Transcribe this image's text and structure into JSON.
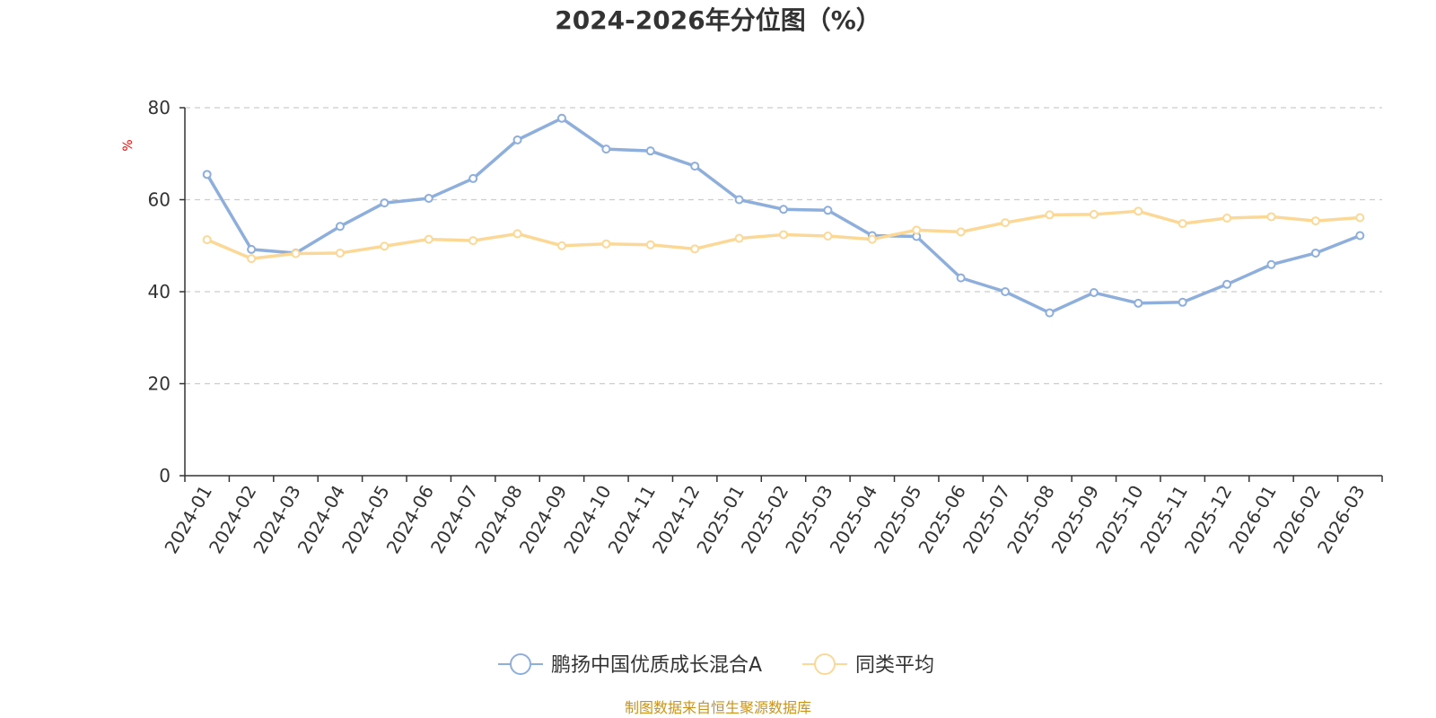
{
  "chart_data": {
    "type": "line",
    "title": "2024-2026年分位图（%）",
    "ylabel": "%",
    "ylim": [
      0,
      80
    ],
    "yticks": [
      0,
      20,
      40,
      60,
      80
    ],
    "grid": true,
    "legend_position": "bottom",
    "categories": [
      "2024-01",
      "2024-02",
      "2024-03",
      "2024-04",
      "2024-05",
      "2024-06",
      "2024-07",
      "2024-08",
      "2024-09",
      "2024-10",
      "2024-11",
      "2024-12",
      "2025-01",
      "2025-02",
      "2025-03",
      "2025-04",
      "2025-05",
      "2025-06",
      "2025-07",
      "2025-08",
      "2025-09",
      "2025-10",
      "2025-11",
      "2025-12",
      "2026-01",
      "2026-02",
      "2026-03"
    ],
    "series": [
      {
        "name": "鹏扬中国优质成长混合A",
        "color": "#8eaedb",
        "values": [
          65.5,
          49.2,
          48.4,
          54.2,
          59.3,
          60.3,
          64.6,
          73.0,
          77.7,
          71.0,
          70.6,
          67.3,
          60.0,
          57.9,
          57.7,
          52.2,
          52.0,
          43.0,
          40.0,
          35.4,
          39.8,
          37.5,
          37.7,
          41.6,
          45.9,
          48.4,
          52.2
        ]
      },
      {
        "name": "同类平均",
        "color": "#fcd897",
        "values": [
          51.3,
          47.2,
          48.3,
          48.4,
          49.9,
          51.4,
          51.1,
          52.6,
          50.0,
          50.4,
          50.2,
          49.3,
          51.6,
          52.4,
          52.1,
          51.4,
          53.4,
          53.0,
          55.0,
          56.7,
          56.8,
          57.5,
          54.8,
          56.0,
          56.3,
          55.4,
          56.1
        ]
      }
    ],
    "source_note": "制图数据来自恒生聚源数据库",
    "colors": {
      "axis": "#333333",
      "grid": "#cccccc",
      "ylabel": "#ff0000",
      "source": "#c8941e"
    }
  }
}
